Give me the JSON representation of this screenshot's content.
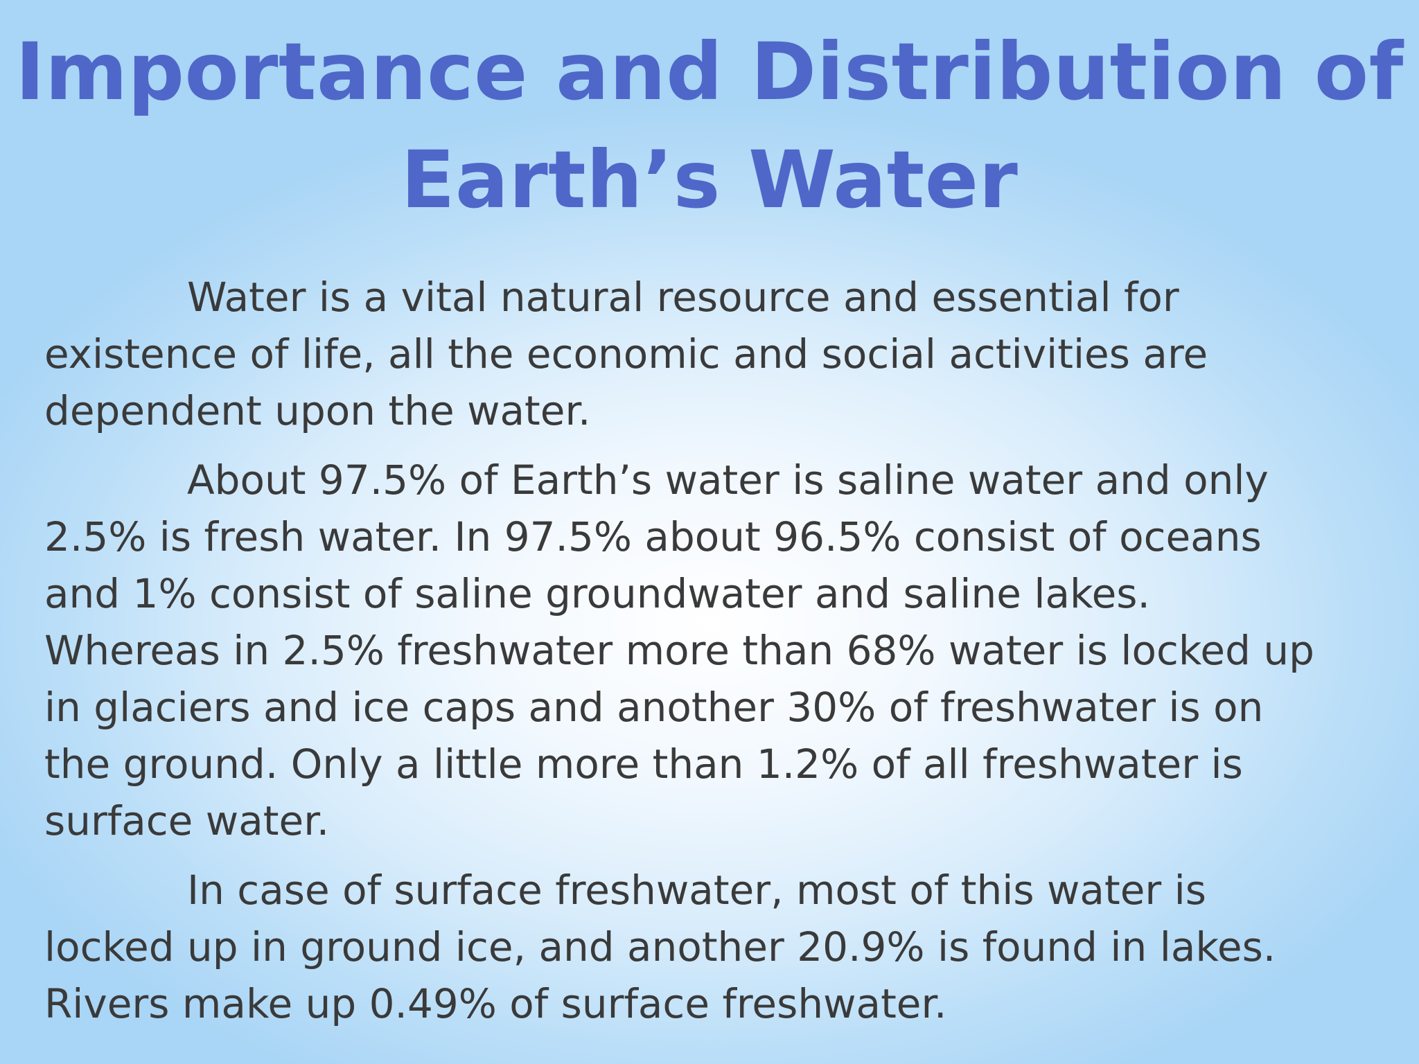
{
  "slide": {
    "title_lines": [
      "Importance and Distribution of",
      "Earth’s Water"
    ],
    "paragraphs": [
      "Water is a vital natural resource and essential for\nexistence of life, all the economic and social activities are\ndependent upon the water.",
      "About 97.5% of Earth’s water is saline water and only\n2.5% is fresh water. In 97.5% about 96.5% consist of oceans\nand 1% consist of saline groundwater and saline lakes.\nWhereas in 2.5% freshwater more than 68% water is locked up\nin glaciers and ice caps and another 30% of freshwater is on\nthe ground. Only a little more than 1.2% of all freshwater is\nsurface water.",
      "In case of surface freshwater, most of this water is\nlocked up in ground ice, and another 20.9% is found in lakes.\nRivers make up 0.49% of surface freshwater."
    ]
  },
  "colors": {
    "title": "#4f67c8",
    "body_text": "#3a3a3a",
    "background_center": "#ffffff",
    "background_edge": "#a9d5f6"
  }
}
